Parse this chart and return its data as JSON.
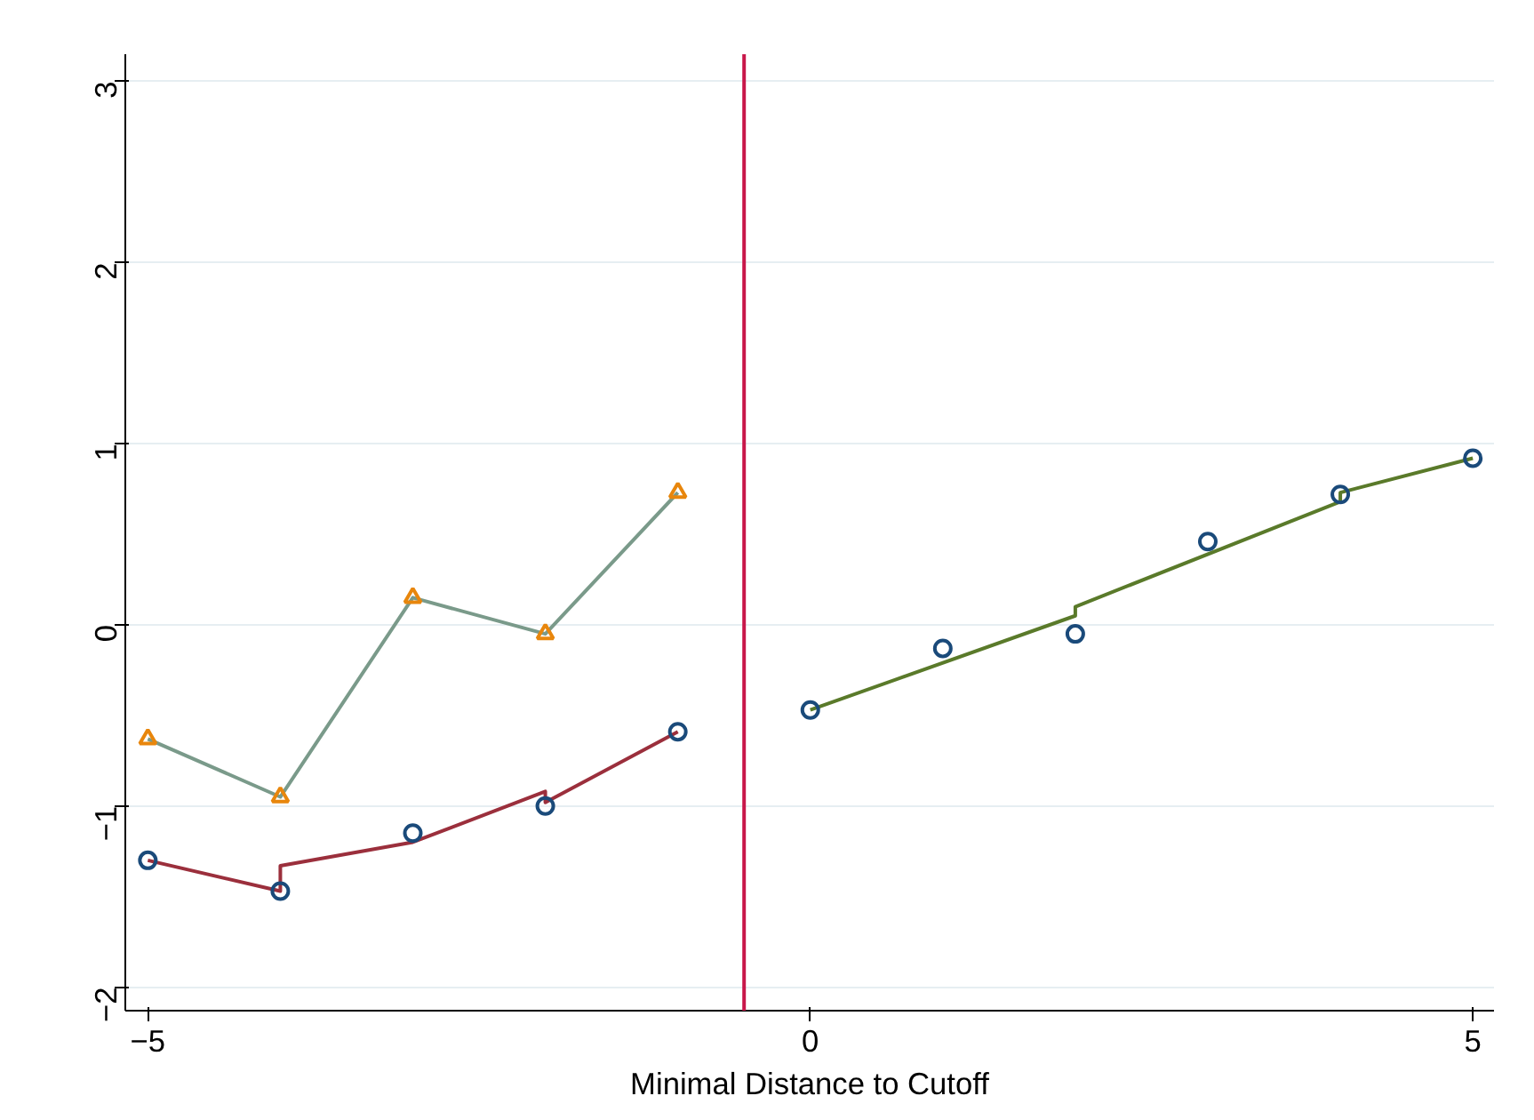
{
  "chart_data": {
    "type": "line",
    "xlabel": "Minimal Distance to Cutoff",
    "xlim": [
      -5.17,
      5.16
    ],
    "ylim": [
      -2.13,
      3.15
    ],
    "xticks": [
      -5,
      0,
      5
    ],
    "yticks": [
      -2,
      -1,
      0,
      1,
      2,
      3
    ],
    "grid": "y",
    "series": [
      {
        "color": "#7a9a8a",
        "marker": "none",
        "x": [
          -5,
          -4,
          -3,
          -2,
          -1
        ],
        "values": [
          -0.63,
          -0.95,
          0.15,
          -0.05,
          0.73
        ]
      },
      {
        "type": "scatter",
        "color": "#e8860c",
        "marker": "triangle",
        "x": [
          -5,
          -4,
          -3,
          -2,
          -1
        ],
        "values": [
          -0.63,
          -0.95,
          0.15,
          -0.05,
          0.73
        ]
      },
      {
        "color": "#9b2f3c",
        "marker": "none",
        "x": [
          -5,
          -4,
          -4,
          -3,
          -2,
          -2,
          -1
        ],
        "values": [
          -1.3,
          -1.47,
          -1.33,
          -1.2,
          -0.92,
          -0.98,
          -0.59
        ]
      },
      {
        "color": "#5a7a2a",
        "marker": "none",
        "x": [
          0,
          2,
          2,
          4,
          4,
          5
        ],
        "values": [
          -0.47,
          0.05,
          0.1,
          0.68,
          0.73,
          0.92
        ]
      },
      {
        "type": "scatter",
        "color": "#1a4a7a",
        "marker": "circle",
        "x": [
          -5,
          -4,
          -3,
          -2,
          -1,
          0,
          1,
          2,
          3,
          4,
          5
        ],
        "values": [
          -1.3,
          -1.47,
          -1.15,
          -1.0,
          -0.59,
          -0.47,
          -0.13,
          -0.05,
          0.46,
          0.72,
          0.92
        ]
      }
    ],
    "ref_lines": [
      {
        "axis": "x",
        "value": -0.5,
        "color": "#c8174a"
      }
    ]
  }
}
